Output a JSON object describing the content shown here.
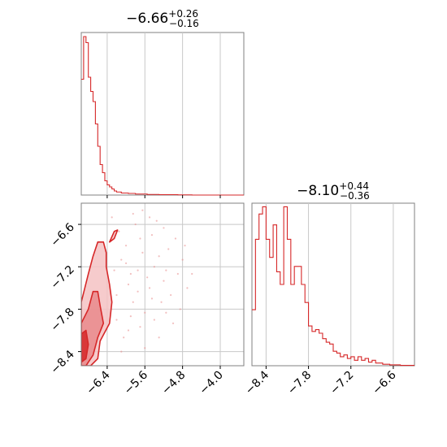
{
  "chart_data": {
    "type": "corner",
    "color": "#d62728",
    "grid": true,
    "panels": [
      {
        "panel": "param-1-histogram",
        "type": "histogram",
        "title": {
          "median": "−6.66",
          "plus": "+0.26",
          "minus": "−0.16"
        },
        "xlim": [
          -6.95,
          -3.5
        ],
        "xticks": [
          -6.4,
          -5.6,
          -4.8,
          -4.0
        ],
        "bins": [
          [
            -6.95,
            -6.9,
            0.57
          ],
          [
            -6.9,
            -6.85,
            0.78
          ],
          [
            -6.85,
            -6.8,
            0.75
          ],
          [
            -6.8,
            -6.75,
            0.58
          ],
          [
            -6.75,
            -6.7,
            0.51
          ],
          [
            -6.7,
            -6.65,
            0.46
          ],
          [
            -6.65,
            -6.6,
            0.35
          ],
          [
            -6.6,
            -6.55,
            0.24
          ],
          [
            -6.55,
            -6.5,
            0.15
          ],
          [
            -6.5,
            -6.45,
            0.11
          ],
          [
            -6.45,
            -6.4,
            0.07
          ],
          [
            -6.4,
            -6.35,
            0.05
          ],
          [
            -6.35,
            -6.3,
            0.04
          ],
          [
            -6.3,
            -6.25,
            0.03
          ],
          [
            -6.25,
            -6.2,
            0.02
          ],
          [
            -6.2,
            -6.1,
            0.015
          ],
          [
            -6.1,
            -5.95,
            0.01
          ],
          [
            -5.95,
            -5.8,
            0.008
          ],
          [
            -5.8,
            -5.55,
            0.005
          ],
          [
            -5.55,
            -5.3,
            0.003
          ],
          [
            -5.3,
            -4.9,
            0.002
          ],
          [
            -4.9,
            -4.6,
            0.001
          ],
          [
            -4.6,
            -3.5,
            0.0
          ]
        ]
      },
      {
        "panel": "param-2-histogram",
        "type": "histogram",
        "title": {
          "median": "−8.10",
          "plus": "+0.44",
          "minus": "−0.36"
        },
        "xlim": [
          -8.6,
          -6.3
        ],
        "xticks": [
          -8.4,
          -7.8,
          -7.2,
          -6.6
        ],
        "bins": [
          [
            -8.6,
            -8.55,
            0.31
          ],
          [
            -8.55,
            -8.5,
            0.7
          ],
          [
            -8.5,
            -8.45,
            0.84
          ],
          [
            -8.45,
            -8.4,
            0.88
          ],
          [
            -8.4,
            -8.35,
            0.7
          ],
          [
            -8.35,
            -8.3,
            0.6
          ],
          [
            -8.3,
            -8.25,
            0.78
          ],
          [
            -8.25,
            -8.2,
            0.52
          ],
          [
            -8.2,
            -8.15,
            0.45
          ],
          [
            -8.15,
            -8.1,
            0.88
          ],
          [
            -8.1,
            -8.05,
            0.7
          ],
          [
            -8.05,
            -8.0,
            0.45
          ],
          [
            -8.0,
            -7.95,
            0.55
          ],
          [
            -7.95,
            -7.9,
            0.55
          ],
          [
            -7.9,
            -7.85,
            0.45
          ],
          [
            -7.85,
            -7.8,
            0.35
          ],
          [
            -7.8,
            -7.75,
            0.22
          ],
          [
            -7.75,
            -7.7,
            0.19
          ],
          [
            -7.7,
            -7.65,
            0.2
          ],
          [
            -7.65,
            -7.6,
            0.18
          ],
          [
            -7.6,
            -7.55,
            0.15
          ],
          [
            -7.55,
            -7.5,
            0.13
          ],
          [
            -7.5,
            -7.45,
            0.12
          ],
          [
            -7.45,
            -7.4,
            0.08
          ],
          [
            -7.4,
            -7.35,
            0.07
          ],
          [
            -7.35,
            -7.3,
            0.05
          ],
          [
            -7.3,
            -7.25,
            0.06
          ],
          [
            -7.25,
            -7.2,
            0.04
          ],
          [
            -7.2,
            -7.15,
            0.05
          ],
          [
            -7.15,
            -7.1,
            0.03
          ],
          [
            -7.1,
            -7.05,
            0.05
          ],
          [
            -7.05,
            -7.0,
            0.03
          ],
          [
            -7.0,
            -6.95,
            0.04
          ],
          [
            -6.95,
            -6.9,
            0.02
          ],
          [
            -6.9,
            -6.85,
            0.03
          ],
          [
            -6.85,
            -6.75,
            0.015
          ],
          [
            -6.75,
            -6.65,
            0.008
          ],
          [
            -6.65,
            -6.5,
            0.005
          ],
          [
            -6.5,
            -6.3,
            0.002
          ]
        ]
      },
      {
        "panel": "joint-2d",
        "type": "contour-scatter",
        "xlim": [
          -6.95,
          -3.5
        ],
        "ylim": [
          -8.6,
          -6.3
        ],
        "xticks": [
          -6.4,
          -5.6,
          -4.8,
          -4.0
        ],
        "yticks": [
          -6.6,
          -7.2,
          -7.8,
          -8.4
        ],
        "contours": [
          {
            "level": "outer",
            "fill": "#f4c2c3",
            "points": [
              [
                -6.95,
                -7.7
              ],
              [
                -6.8,
                -7.3
              ],
              [
                -6.7,
                -7.05
              ],
              [
                -6.6,
                -6.85
              ],
              [
                -6.48,
                -6.85
              ],
              [
                -6.42,
                -7.0
              ],
              [
                -6.42,
                -7.2
              ],
              [
                -6.35,
                -7.45
              ],
              [
                -6.3,
                -7.7
              ],
              [
                -6.35,
                -8.0
              ],
              [
                -6.55,
                -8.25
              ],
              [
                -6.6,
                -8.5
              ],
              [
                -6.75,
                -8.6
              ],
              [
                -6.95,
                -8.6
              ]
            ]
          },
          {
            "level": "middle",
            "fill": "#e9898b",
            "points": [
              [
                -6.95,
                -8.0
              ],
              [
                -6.8,
                -7.8
              ],
              [
                -6.7,
                -7.55
              ],
              [
                -6.6,
                -7.55
              ],
              [
                -6.55,
                -7.75
              ],
              [
                -6.48,
                -8.0
              ],
              [
                -6.6,
                -8.2
              ],
              [
                -6.7,
                -8.45
              ],
              [
                -6.85,
                -8.6
              ],
              [
                -6.95,
                -8.6
              ]
            ]
          },
          {
            "level": "inner",
            "fill": "#d62728",
            "points": [
              [
                -6.95,
                -8.15
              ],
              [
                -6.85,
                -8.1
              ],
              [
                -6.8,
                -8.3
              ],
              [
                -6.85,
                -8.5
              ],
              [
                -6.95,
                -8.55
              ]
            ]
          },
          {
            "level": "island",
            "fill": "#f4c2c3",
            "points": [
              [
                -6.35,
                -6.85
              ],
              [
                -6.25,
                -6.7
              ],
              [
                -6.18,
                -6.68
              ],
              [
                -6.25,
                -6.8
              ]
            ]
          }
        ],
        "scatter": [
          [
            -6.1,
            -7.1
          ],
          [
            -5.9,
            -7.3
          ],
          [
            -5.7,
            -6.8
          ],
          [
            -5.5,
            -7.5
          ],
          [
            -5.3,
            -7.05
          ],
          [
            -5.85,
            -7.7
          ],
          [
            -6.0,
            -6.9
          ],
          [
            -5.4,
            -7.2
          ],
          [
            -5.6,
            -7.85
          ],
          [
            -5.2,
            -7.4
          ],
          [
            -6.2,
            -7.95
          ],
          [
            -5.95,
            -8.1
          ],
          [
            -5.75,
            -7.55
          ],
          [
            -5.1,
            -6.95
          ],
          [
            -4.9,
            -7.3
          ],
          [
            -5.65,
            -7.0
          ],
          [
            -5.8,
            -6.6
          ],
          [
            -6.15,
            -6.7
          ],
          [
            -5.45,
            -6.75
          ],
          [
            -5.25,
            -7.7
          ],
          [
            -5.05,
            -7.6
          ],
          [
            -6.05,
            -8.2
          ],
          [
            -5.55,
            -7.35
          ],
          [
            -5.35,
            -6.55
          ],
          [
            -4.8,
            -7.1
          ],
          [
            -5.95,
            -7.45
          ],
          [
            -6.25,
            -7.25
          ],
          [
            -5.7,
            -8.05
          ],
          [
            -5.15,
            -7.85
          ],
          [
            -4.95,
            -6.8
          ],
          [
            -5.85,
            -6.45
          ],
          [
            -5.5,
            -6.5
          ],
          [
            -6.1,
            -8.4
          ],
          [
            -5.4,
            -7.95
          ],
          [
            -4.7,
            -7.5
          ],
          [
            -5.0,
            -8.0
          ],
          [
            -5.6,
            -8.35
          ],
          [
            -6.3,
            -6.5
          ],
          [
            -5.2,
            -6.65
          ],
          [
            -4.85,
            -7.8
          ],
          [
            -6.2,
            -7.6
          ],
          [
            -5.9,
            -7.9
          ],
          [
            -5.65,
            -6.4
          ],
          [
            -5.3,
            -8.2
          ],
          [
            -4.6,
            -7.3
          ],
          [
            -6.0,
            -7.15
          ],
          [
            -5.75,
            -7.25
          ],
          [
            -5.45,
            -7.65
          ],
          [
            -5.15,
            -7.25
          ],
          [
            -4.75,
            -6.9
          ]
        ]
      }
    ]
  }
}
